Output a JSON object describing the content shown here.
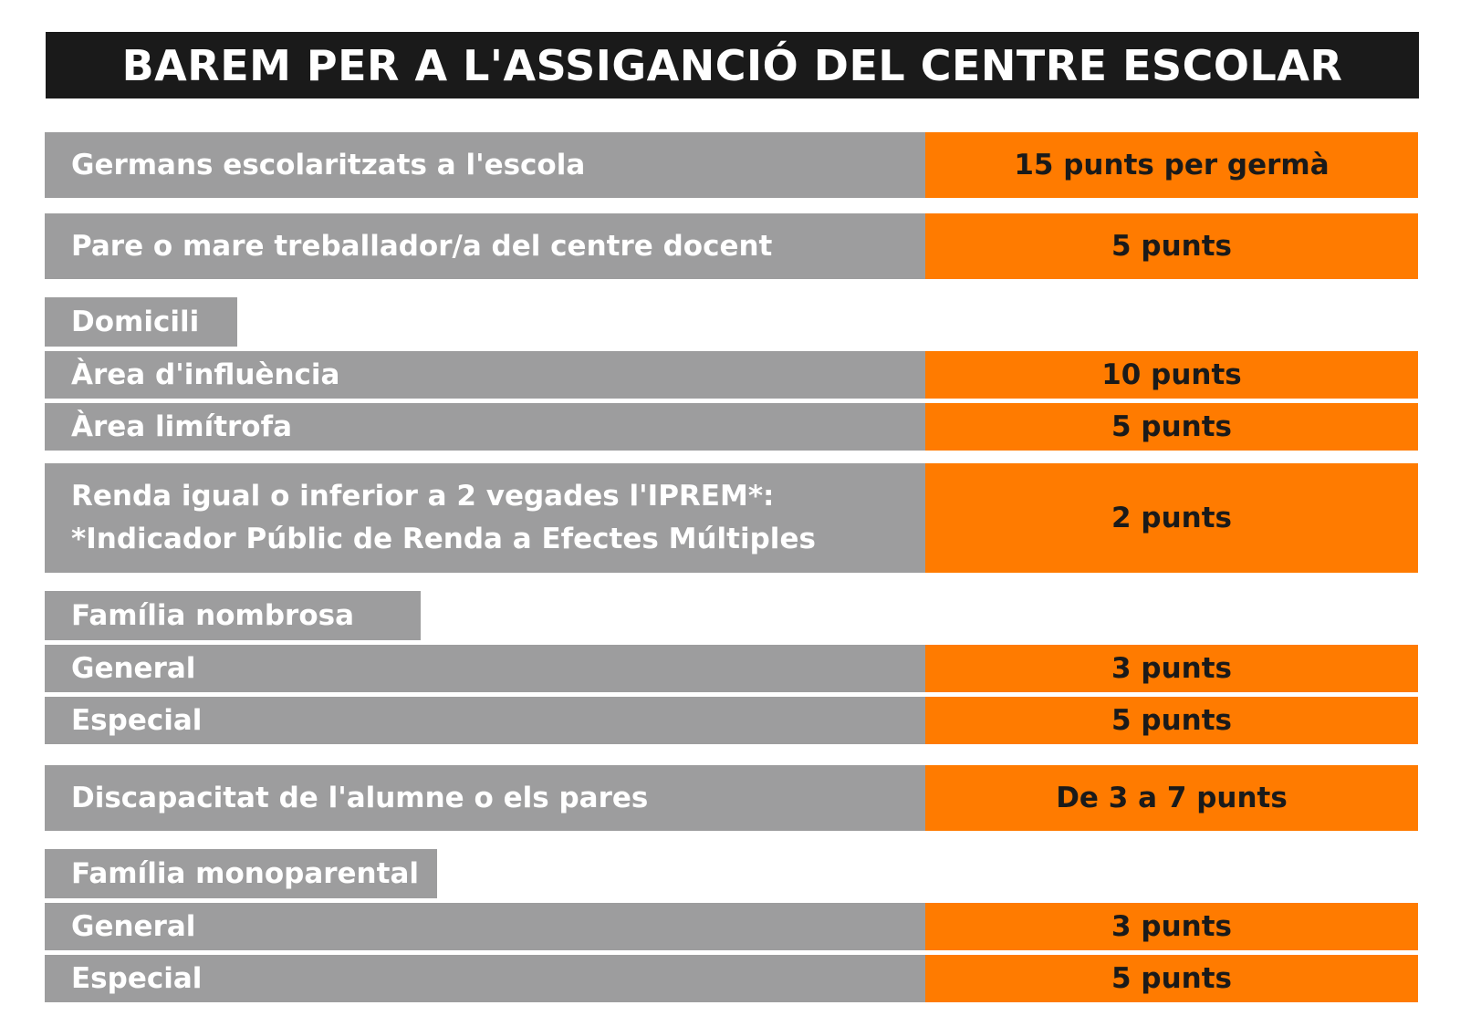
{
  "title": "BAREM PER A L'ASSIGANCIÓ DEL CENTRE ESCOLAR",
  "colors": {
    "title_bg": "#1a1a1a",
    "label_bg": "#9d9d9e",
    "value_bg": "#ff7b00"
  },
  "rows": {
    "germans": {
      "label": "Germans escolaritzats a l'escola",
      "value": "15 punts per germà"
    },
    "pare_mare": {
      "label": "Pare o mare treballador/a del centre docent",
      "value": "5 punts"
    },
    "domicili": {
      "header": "Domicili",
      "area_influencia": {
        "label": "Àrea d'influència",
        "value": "10 punts"
      },
      "area_limitrofa": {
        "label": "Àrea limítrofa",
        "value": "5 punts"
      }
    },
    "renda": {
      "label_line1": "Renda igual o inferior a 2 vegades l'IPREM*:",
      "label_line2": "*Indicador Públic de Renda a Efectes Múltiples",
      "value": "2 punts"
    },
    "familia_nombrosa": {
      "header": "Família nombrosa",
      "general": {
        "label": "General",
        "value": "3 punts"
      },
      "especial": {
        "label": "Especial",
        "value": "5 punts"
      }
    },
    "discapacitat": {
      "label": "Discapacitat de l'alumne o els pares",
      "value": "De 3 a 7 punts"
    },
    "familia_monoparental": {
      "header": "Família monoparental",
      "general": {
        "label": "General",
        "value": "3 punts"
      },
      "especial": {
        "label": "Especial",
        "value": "5 punts"
      }
    }
  }
}
